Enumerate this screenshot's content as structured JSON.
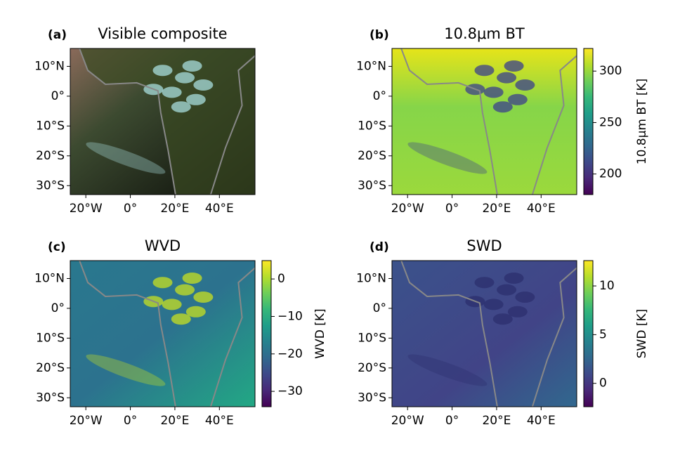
{
  "chart_data": [
    {
      "type": "image",
      "panel_label": "(a)",
      "title": "Visible composite",
      "xlim": [
        -27,
        56
      ],
      "ylim": [
        -33,
        16
      ],
      "xticks": [
        {
          "value": -20,
          "label": "20°W"
        },
        {
          "value": 0,
          "label": "0°"
        },
        {
          "value": 20,
          "label": "20°E"
        },
        {
          "value": 40,
          "label": "40°E"
        }
      ],
      "yticks": [
        {
          "value": 10,
          "label": "10°N"
        },
        {
          "value": 0,
          "label": "0°"
        },
        {
          "value": -10,
          "label": "10°S"
        },
        {
          "value": -20,
          "label": "20°S"
        },
        {
          "value": -30,
          "label": "30°S"
        }
      ]
    },
    {
      "type": "map",
      "panel_label": "(b)",
      "title": "10.8μm BT",
      "xlim": [
        -27,
        56
      ],
      "ylim": [
        -33,
        16
      ],
      "xticks": [
        {
          "value": -20,
          "label": "20°W"
        },
        {
          "value": 0,
          "label": "0°"
        },
        {
          "value": 20,
          "label": "20°E"
        },
        {
          "value": 40,
          "label": "40°E"
        }
      ],
      "yticks": [
        {
          "value": 10,
          "label": "10°N"
        },
        {
          "value": 0,
          "label": "0°"
        },
        {
          "value": -10,
          "label": "10°S"
        },
        {
          "value": -20,
          "label": "20°S"
        },
        {
          "value": -30,
          "label": "30°S"
        }
      ],
      "colorbar": {
        "label": "10.8μm BT [K]",
        "colormap": "viridis",
        "lim": [
          180,
          322
        ],
        "ticks": [
          200,
          250,
          300
        ]
      }
    },
    {
      "type": "map",
      "panel_label": "(c)",
      "title": "WVD",
      "xlim": [
        -27,
        56
      ],
      "ylim": [
        -33,
        16
      ],
      "xticks": [
        {
          "value": -20,
          "label": "20°W"
        },
        {
          "value": 0,
          "label": "0°"
        },
        {
          "value": 20,
          "label": "20°E"
        },
        {
          "value": 40,
          "label": "40°E"
        }
      ],
      "yticks": [
        {
          "value": 10,
          "label": "10°N"
        },
        {
          "value": 0,
          "label": "0°"
        },
        {
          "value": -10,
          "label": "10°S"
        },
        {
          "value": -20,
          "label": "20°S"
        },
        {
          "value": -30,
          "label": "30°S"
        }
      ],
      "colorbar": {
        "label": "WVD [K]",
        "colormap": "viridis",
        "lim": [
          -34.1,
          4.9
        ],
        "ticks": [
          0,
          {
            "value": -10,
            "label": "−10"
          },
          {
            "value": -20,
            "label": "−20"
          },
          {
            "value": -30,
            "label": "−30"
          }
        ]
      }
    },
    {
      "type": "map",
      "panel_label": "(d)",
      "title": "SWD",
      "xlim": [
        -27,
        56
      ],
      "ylim": [
        -33,
        16
      ],
      "xticks": [
        {
          "value": -20,
          "label": "20°W"
        },
        {
          "value": 0,
          "label": "0°"
        },
        {
          "value": 20,
          "label": "20°E"
        },
        {
          "value": 40,
          "label": "40°E"
        }
      ],
      "yticks": [
        {
          "value": 10,
          "label": "10°N"
        },
        {
          "value": 0,
          "label": "0°"
        },
        {
          "value": -10,
          "label": "10°S"
        },
        {
          "value": -20,
          "label": "20°S"
        },
        {
          "value": -30,
          "label": "30°S"
        }
      ],
      "colorbar": {
        "label": "SWD [K]",
        "colormap": "viridis",
        "lim": [
          -2.4,
          12.6
        ],
        "ticks": [
          0,
          5,
          10
        ]
      }
    }
  ]
}
